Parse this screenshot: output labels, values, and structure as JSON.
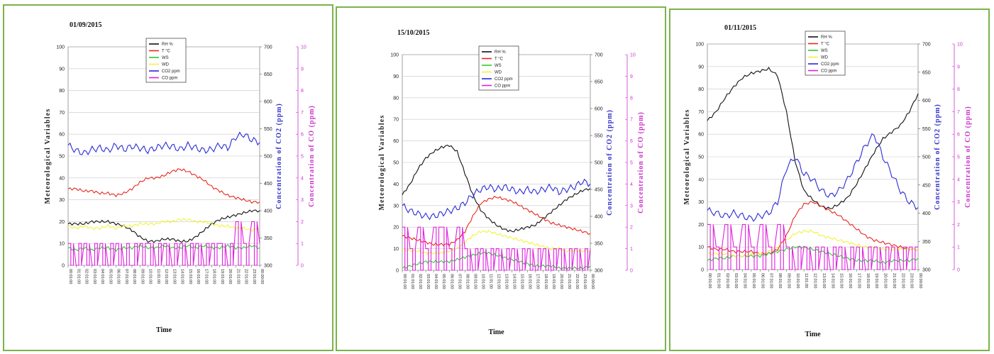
{
  "chart_data": [
    {
      "type": "line",
      "title": "01/09/2015",
      "xlabel": "Time",
      "ylabel": "Meteorological Variables",
      "y2label": "Concentration of CO2 (ppm)",
      "y3label": "Concentration of CO (ppm)",
      "ylim": [
        0,
        100
      ],
      "y2lim": [
        300,
        700
      ],
      "y3lim": [
        0,
        10
      ],
      "y_ticks": [
        "0",
        "10",
        "20",
        "30",
        "40",
        "50",
        "60",
        "70",
        "80",
        "90",
        "100"
      ],
      "y2_ticks": [
        "300",
        "350",
        "400",
        "450",
        "500",
        "550",
        "600",
        "650",
        "700"
      ],
      "y3_ticks": [
        "0",
        "1",
        "2",
        "3",
        "4",
        "5",
        "6",
        "7",
        "8",
        "9",
        "10"
      ],
      "x_ticks": [
        "00:01:00",
        "01:01:00",
        "02:01:00",
        "03:01:00",
        "04:01:00",
        "05:01:00",
        "06:01:00",
        "07:01:00",
        "08:01:00",
        "09:01:00",
        "10:01:00",
        "11:01:00",
        "12:01:00",
        "13:01:00",
        "14:01:00",
        "15:01:00",
        "16:01:00",
        "17:01:00",
        "18:01:00",
        "19:01:00",
        "20:01:00",
        "21:01:00",
        "22:01:00",
        "23:01:00",
        "00:00:00"
      ],
      "legend": [
        "RH %",
        "T °C",
        "WS",
        "WD",
        "CO2 ppm",
        "CO ppm"
      ],
      "series": [
        {
          "name": "RH %",
          "axis": "left",
          "color": "#111111",
          "values": [
            19,
            19,
            19,
            20,
            20,
            20,
            19,
            18,
            16,
            13,
            11,
            11,
            12,
            12,
            11,
            11,
            13,
            16,
            19,
            21,
            22,
            23,
            24,
            25,
            25
          ]
        },
        {
          "name": "T °C",
          "axis": "left",
          "color": "#e8281e",
          "values": [
            35,
            35,
            34,
            34,
            33,
            33,
            32,
            33,
            35,
            38,
            40,
            40,
            41,
            43,
            44,
            43,
            41,
            39,
            36,
            34,
            32,
            31,
            30,
            29,
            29
          ]
        },
        {
          "name": "WS",
          "axis": "left",
          "color": "#2fcc2f",
          "values": [
            8,
            7,
            8,
            7,
            8,
            8,
            7,
            8,
            8,
            9,
            8,
            8,
            9,
            8,
            8,
            9,
            8,
            9,
            8,
            8,
            9,
            8,
            8,
            9,
            8
          ]
        },
        {
          "name": "WD",
          "axis": "left",
          "color": "#f2f23c",
          "values": [
            18,
            17,
            18,
            17,
            17,
            18,
            17,
            18,
            18,
            19,
            19,
            19,
            20,
            20,
            21,
            21,
            20,
            20,
            19,
            18,
            18,
            17,
            17,
            16,
            17
          ]
        },
        {
          "name": "CO2 ppm",
          "axis": "right",
          "color": "#2a2ad6",
          "values": [
            520,
            510,
            505,
            512,
            515,
            510,
            520,
            512,
            518,
            515,
            510,
            515,
            520,
            518,
            512,
            520,
            515,
            510,
            512,
            520,
            515,
            535,
            540,
            530,
            525
          ]
        },
        {
          "name": "CO ppm",
          "axis": "right2",
          "color": "#e020e0",
          "values": [
            1,
            0,
            1,
            0,
            1,
            0,
            1,
            0,
            0,
            1,
            1,
            0,
            1,
            0,
            1,
            0,
            1,
            0,
            1,
            1,
            0,
            2,
            1,
            2,
            1
          ]
        }
      ]
    },
    {
      "type": "line",
      "title": "15/10/2015",
      "xlabel": "Time",
      "ylabel": "Meteorological Variables",
      "y2label": "Concentration of CO2 (ppm)",
      "y3label": "Concentration of CO (ppm)",
      "ylim": [
        0,
        100
      ],
      "y2lim": [
        300,
        700
      ],
      "y3lim": [
        0,
        10
      ],
      "y_ticks": [
        "0",
        "10",
        "20",
        "30",
        "40",
        "50",
        "60",
        "70",
        "80",
        "90",
        "100"
      ],
      "y2_ticks": [
        "300",
        "350",
        "400",
        "450",
        "500",
        "550",
        "600",
        "650",
        "700"
      ],
      "y3_ticks": [
        "0",
        "1",
        "2",
        "3",
        "4",
        "5",
        "6",
        "7",
        "8",
        "9",
        "10"
      ],
      "x_ticks": [
        "00:01:00",
        "01:01:00",
        "02:01:00",
        "03:01:00",
        "04:01:00",
        "05:01:00",
        "06:01:00",
        "07:01:00",
        "08:01:00",
        "09:01:00",
        "10:01:00",
        "11:01:00",
        "12:01:00",
        "13:01:00",
        "14:01:00",
        "15:01:00",
        "16:01:00",
        "17:01:00",
        "18:01:00",
        "19:01:00",
        "20:01:00",
        "21:01:00",
        "22:01:00",
        "23:01:00",
        "00:00:00"
      ],
      "legend": [
        "RH %",
        "T °C",
        "WS",
        "WD",
        "CO2 ppm",
        "CO ppm"
      ],
      "series": [
        {
          "name": "RH %",
          "axis": "left",
          "color": "#111111",
          "values": [
            35,
            40,
            47,
            52,
            55,
            57,
            58,
            55,
            45,
            35,
            28,
            24,
            21,
            19,
            18,
            19,
            20,
            21,
            24,
            27,
            30,
            33,
            35,
            37,
            38
          ]
        },
        {
          "name": "T °C",
          "axis": "left",
          "color": "#e8281e",
          "values": [
            16,
            15,
            14,
            13,
            12,
            12,
            12,
            14,
            18,
            25,
            31,
            33,
            34,
            33,
            32,
            30,
            28,
            26,
            24,
            22,
            21,
            20,
            19,
            18,
            17
          ]
        },
        {
          "name": "WS",
          "axis": "left",
          "color": "#2fcc2f",
          "values": [
            1,
            2,
            3,
            4,
            4,
            4,
            4,
            5,
            6,
            7,
            8,
            8,
            7,
            6,
            5,
            4,
            3,
            2,
            2,
            2,
            1,
            1,
            1,
            1,
            2
          ]
        },
        {
          "name": "WD",
          "axis": "left",
          "color": "#f2f23c",
          "values": [
            10,
            9,
            9,
            8,
            8,
            8,
            9,
            10,
            13,
            16,
            18,
            18,
            17,
            16,
            15,
            14,
            13,
            12,
            11,
            10,
            10,
            9,
            9,
            9,
            9
          ]
        },
        {
          "name": "CO2 ppm",
          "axis": "right",
          "color": "#2a2ad6",
          "values": [
            420,
            410,
            405,
            400,
            400,
            405,
            410,
            415,
            425,
            440,
            450,
            455,
            450,
            455,
            450,
            445,
            450,
            445,
            450,
            455,
            445,
            450,
            455,
            465,
            460
          ]
        },
        {
          "name": "CO ppm",
          "axis": "right2",
          "color": "#e020e0",
          "values": [
            2,
            1,
            2,
            1,
            2,
            2,
            1,
            2,
            1,
            0,
            1,
            0,
            1,
            0,
            1,
            0,
            1,
            0,
            1,
            0,
            1,
            0,
            1,
            0,
            1
          ]
        }
      ]
    },
    {
      "type": "line",
      "title": "01/11/2015",
      "xlabel": "Time",
      "ylabel": "Meteorological Variables",
      "y2label": "Concentration of CO2 (ppm)",
      "y3label": "Concentration of CO (ppm)",
      "ylim": [
        0,
        100
      ],
      "y2lim": [
        300,
        700
      ],
      "y3lim": [
        0,
        10
      ],
      "y_ticks": [
        "0",
        "10",
        "20",
        "30",
        "40",
        "50",
        "60",
        "70",
        "80",
        "90",
        "100"
      ],
      "y2_ticks": [
        "300",
        "350",
        "400",
        "450",
        "500",
        "550",
        "600",
        "650",
        "700"
      ],
      "y3_ticks": [
        "0",
        "1",
        "2",
        "3",
        "4",
        "5",
        "6",
        "7",
        "8",
        "9",
        "10"
      ],
      "x_ticks": [
        "00:01:00",
        "01:01:00",
        "02:01:00",
        "03:01:00",
        "04:01:00",
        "05:01:00",
        "06:01:00",
        "07:01:00",
        "08:01:00",
        "09:01:00",
        "10:01:00",
        "11:01:00",
        "12:01:00",
        "13:01:00",
        "14:01:00",
        "15:01:00",
        "16:01:00",
        "17:01:00",
        "18:01:00",
        "19:01:00",
        "20:01:00",
        "21:01:00",
        "22:01:00",
        "23:01:00",
        "00:00:00"
      ],
      "legend": [
        "RH %",
        "T °C",
        "WS",
        "WD",
        "CO2 ppm",
        "CO ppm"
      ],
      "series": [
        {
          "name": "RH %",
          "axis": "left",
          "color": "#111111",
          "values": [
            66,
            70,
            76,
            81,
            85,
            87,
            88,
            89,
            86,
            70,
            48,
            35,
            31,
            28,
            27,
            29,
            32,
            38,
            45,
            52,
            58,
            61,
            64,
            70,
            78
          ]
        },
        {
          "name": "T °C",
          "axis": "left",
          "color": "#e8281e",
          "values": [
            10,
            9,
            9,
            8,
            8,
            8,
            7,
            7,
            9,
            15,
            24,
            29,
            30,
            28,
            26,
            24,
            21,
            18,
            15,
            13,
            12,
            11,
            10,
            9,
            9
          ]
        },
        {
          "name": "WS",
          "axis": "left",
          "color": "#2fcc2f",
          "values": [
            4,
            5,
            5,
            6,
            6,
            6,
            6,
            7,
            8,
            9,
            10,
            10,
            9,
            8,
            7,
            6,
            5,
            4,
            4,
            4,
            3,
            4,
            4,
            4,
            5
          ]
        },
        {
          "name": "WD",
          "axis": "left",
          "color": "#f2f23c",
          "values": [
            7,
            7,
            7,
            6,
            6,
            7,
            7,
            8,
            10,
            13,
            16,
            17,
            17,
            15,
            14,
            13,
            12,
            11,
            10,
            10,
            9,
            9,
            9,
            9,
            9
          ]
        },
        {
          "name": "CO2 ppm",
          "axis": "right",
          "color": "#2a2ad6",
          "values": [
            405,
            400,
            395,
            400,
            395,
            390,
            395,
            400,
            420,
            480,
            500,
            470,
            460,
            440,
            430,
            440,
            460,
            490,
            520,
            540,
            500,
            470,
            440,
            420,
            410
          ]
        },
        {
          "name": "CO ppm",
          "axis": "right2",
          "color": "#e020e0",
          "values": [
            2,
            1,
            2,
            1,
            2,
            1,
            2,
            1,
            2,
            1,
            0,
            1,
            0,
            1,
            0,
            1,
            0,
            1,
            0,
            1,
            0,
            1,
            0,
            1,
            1
          ]
        }
      ]
    }
  ]
}
